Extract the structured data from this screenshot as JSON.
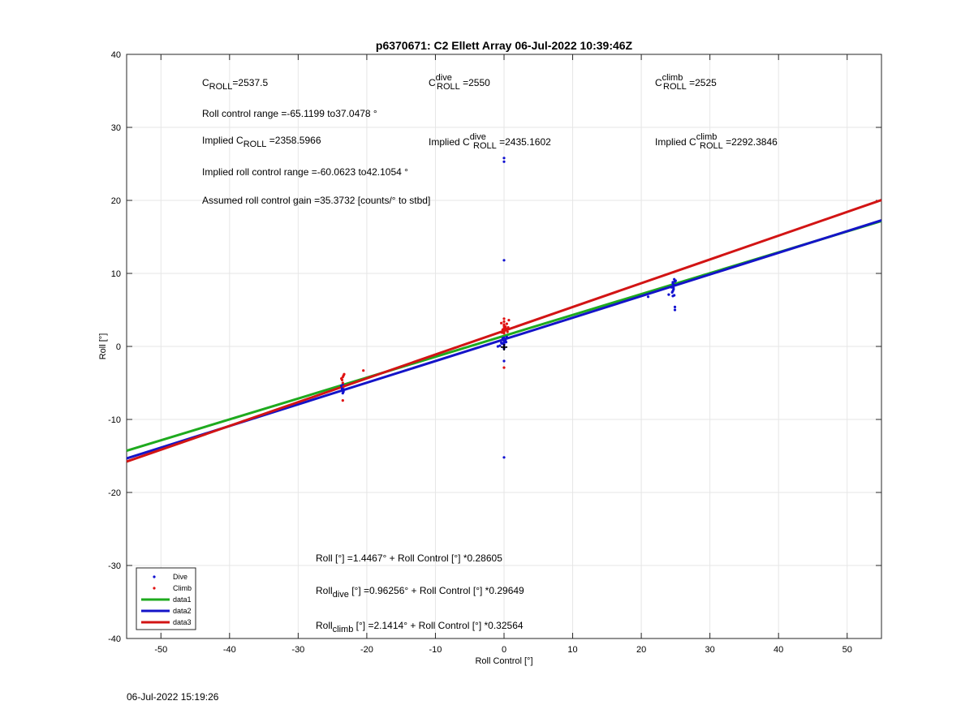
{
  "footer_timestamp": "06-Jul-2022 15:19:26",
  "colors": {
    "data1": "#1eaa1e",
    "data2": "#1414c8",
    "data3": "#d21414",
    "dive": "#1010d0",
    "climb": "#e01010",
    "grid": "#e6e6e6"
  },
  "chart_data": {
    "type": "scatter",
    "title": "p6370671: C2 Ellett Array 06-Jul-2022 10:39:46Z",
    "xlabel": "Roll Control [°]",
    "ylabel": "Roll [°]",
    "xlim": [
      -55,
      55
    ],
    "ylim": [
      -40,
      40
    ],
    "xticks": [
      -50,
      -40,
      -30,
      -20,
      -10,
      0,
      10,
      20,
      30,
      40,
      50
    ],
    "yticks": [
      -40,
      -30,
      -20,
      -10,
      0,
      10,
      20,
      30,
      40
    ],
    "grid": true,
    "legend_location": "bottom-left",
    "legend": [
      {
        "label": "Dive",
        "kind": "marker",
        "color": "#1010d0"
      },
      {
        "label": "Climb",
        "kind": "marker",
        "color": "#e01010"
      },
      {
        "label": "data1",
        "kind": "line",
        "color": "#1eaa1e"
      },
      {
        "label": "data2",
        "kind": "line",
        "color": "#1414c8"
      },
      {
        "label": "data3",
        "kind": "line",
        "color": "#d21414"
      }
    ],
    "fit_lines": [
      {
        "name": "data1",
        "intercept": 1.4467,
        "slope": 0.28605,
        "color": "#1eaa1e"
      },
      {
        "name": "data2",
        "intercept": 0.96256,
        "slope": 0.29649,
        "color": "#1414c8"
      },
      {
        "name": "data3",
        "intercept": 2.1414,
        "slope": 0.32564,
        "color": "#d21414"
      }
    ],
    "series": [
      {
        "name": "Dive",
        "color": "#1010d0",
        "points": [
          [
            -23.5,
            -5.2
          ],
          [
            -23.5,
            -5.6
          ],
          [
            -23.5,
            -6.0
          ],
          [
            -23.6,
            -5.8
          ],
          [
            -23.4,
            -6.2
          ],
          [
            -23.7,
            -5.4
          ],
          [
            -23.5,
            -6.4
          ],
          [
            -23.3,
            -5.9
          ],
          [
            0,
            25.8
          ],
          [
            0,
            25.3
          ],
          [
            0,
            11.8
          ],
          [
            0,
            -2.0
          ],
          [
            0,
            -15.2
          ],
          [
            0,
            0.2
          ],
          [
            0,
            0.5
          ],
          [
            0,
            0.9
          ],
          [
            0,
            1.2
          ],
          [
            0,
            0.3
          ],
          [
            0,
            -0.3
          ],
          [
            0,
            0.7
          ],
          [
            -0.3,
            0.4
          ],
          [
            -0.6,
            0.1
          ],
          [
            -0.9,
            0.0
          ],
          [
            0.3,
            0.6
          ],
          [
            -0.2,
            1.1
          ],
          [
            0.2,
            0.8
          ],
          [
            -0.4,
            0.5
          ],
          [
            0.4,
            1.3
          ],
          [
            21,
            6.8
          ],
          [
            24,
            7.1
          ],
          [
            24.5,
            8.2
          ],
          [
            24.7,
            7.8
          ],
          [
            24.6,
            8.6
          ],
          [
            24.8,
            9.2
          ],
          [
            24.9,
            8.9
          ],
          [
            24.5,
            7.4
          ],
          [
            24.6,
            6.9
          ],
          [
            24.9,
            5.4
          ],
          [
            24.9,
            5.0
          ],
          [
            24.7,
            8.0
          ],
          [
            24.8,
            8.4
          ],
          [
            24.6,
            7.6
          ],
          [
            25,
            9.0
          ],
          [
            24.4,
            8.1
          ],
          [
            24.8,
            7.0
          ],
          [
            24.6,
            8.8
          ]
        ]
      },
      {
        "name": "Climb",
        "color": "#e01010",
        "points": [
          [
            -23.5,
            -4.2
          ],
          [
            -23.3,
            -3.8
          ],
          [
            -23.6,
            -4.6
          ],
          [
            -23.5,
            -5.0
          ],
          [
            -23.4,
            -5.5
          ],
          [
            -23.7,
            -4.4
          ],
          [
            -23.5,
            -7.4
          ],
          [
            -23.4,
            -4.0
          ],
          [
            -20.5,
            -3.3
          ],
          [
            0,
            3.8
          ],
          [
            0,
            3.4
          ],
          [
            0,
            3.0
          ],
          [
            0,
            2.8
          ],
          [
            0,
            2.5
          ],
          [
            0,
            2.2
          ],
          [
            0,
            2.0
          ],
          [
            0,
            1.8
          ],
          [
            0,
            -2.9
          ],
          [
            0.3,
            2.4
          ],
          [
            0.6,
            2.6
          ],
          [
            -0.3,
            1.9
          ],
          [
            0.4,
            3.1
          ],
          [
            0.2,
            2.7
          ],
          [
            -0.2,
            2.3
          ],
          [
            0.5,
            2.0
          ],
          [
            -0.4,
            3.2
          ],
          [
            0.7,
            3.6
          ]
        ]
      }
    ],
    "origin_marker": {
      "x": 0,
      "y": 0,
      "label": "+"
    }
  },
  "annotations": {
    "c_roll": {
      "base": "C",
      "sub": "ROLL",
      "value": "=2537.5"
    },
    "c_roll_dive": {
      "base": "C",
      "sup": "dive",
      "sub": "ROLL",
      "value": " =2550"
    },
    "c_roll_climb": {
      "base": "C",
      "sup": "climb",
      "sub": "ROLL",
      "value": " =2525"
    },
    "roll_control_range": "Roll control range =-65.1199 to37.0478 °",
    "implied_c_roll": {
      "prefix": "Implied C",
      "sub": "ROLL",
      "value": " =2358.5966"
    },
    "implied_c_roll_dive": {
      "prefix": "Implied C",
      "sup": "dive",
      "sub": "ROLL",
      "value": " =2435.1602"
    },
    "implied_c_roll_climb": {
      "prefix": "Implied C",
      "sup": "climb",
      "sub": "ROLL",
      "value": " =2292.3846"
    },
    "implied_roll_range": "Implied roll control range =-60.0623 to42.1054 °",
    "gain": "Assumed roll control gain =35.3732 [counts/° to stbd]",
    "eq_all": "Roll [°] =1.4467° + Roll Control [°] *0.28605",
    "eq_dive": {
      "prefix": "Roll",
      "sub": "dive",
      "rest": " [°] =0.96256° + Roll Control [°] *0.29649"
    },
    "eq_climb": {
      "prefix": "Roll",
      "sub": "climb",
      "rest": " [°] =2.1414° + Roll Control [°] *0.32564"
    }
  }
}
